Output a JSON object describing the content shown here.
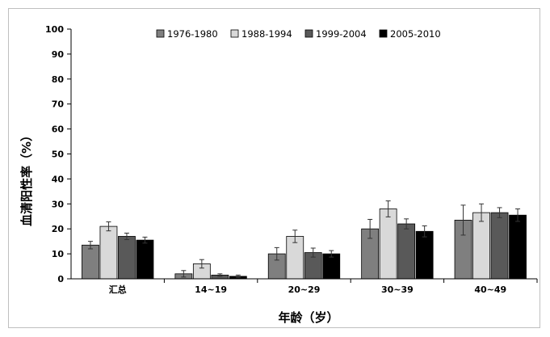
{
  "chart_data": {
    "type": "bar",
    "xlabel": "年龄（岁）",
    "ylabel": "血清阳性率（%）",
    "ylim": [
      0,
      100
    ],
    "yticks": [
      0,
      10,
      20,
      30,
      40,
      50,
      60,
      70,
      80,
      90,
      100
    ],
    "categories": [
      "汇总",
      "14~19",
      "20~29",
      "30~39",
      "40~49"
    ],
    "legend_position": "top",
    "series": [
      {
        "name": "1976-1980",
        "color": "#7f7f7f",
        "values": [
          13.5,
          2.0,
          10.0,
          20.0,
          23.5
        ],
        "error": [
          1.5,
          1.3,
          2.5,
          3.8,
          6.0
        ]
      },
      {
        "name": "1988-1994",
        "color": "#d9d9d9",
        "values": [
          21.0,
          6.0,
          17.0,
          28.0,
          26.5
        ],
        "error": [
          1.8,
          1.7,
          2.5,
          3.2,
          3.5
        ]
      },
      {
        "name": "1999-2004",
        "color": "#595959",
        "values": [
          17.0,
          1.5,
          10.5,
          22.0,
          26.5
        ],
        "error": [
          1.3,
          0.5,
          1.8,
          2.0,
          2.0
        ]
      },
      {
        "name": "2005-2010",
        "color": "#000000",
        "values": [
          15.5,
          1.0,
          10.0,
          19.0,
          25.5
        ],
        "error": [
          1.2,
          0.5,
          1.3,
          2.2,
          2.5
        ]
      }
    ]
  }
}
